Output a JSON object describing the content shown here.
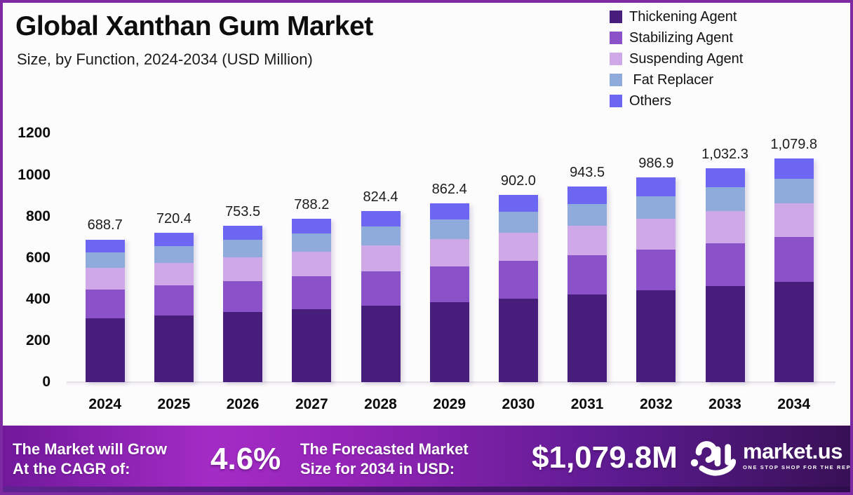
{
  "page": {
    "background": "#fdfcfd",
    "border_color": "#7e2ba3"
  },
  "header": {
    "title": "Global Xanthan Gum Market",
    "subtitle": "Size, by Function, 2024-2034 (USD Million)"
  },
  "chart_data": {
    "type": "bar",
    "stacked": true,
    "title": "Global Xanthan Gum Market",
    "subtitle": "Size, by Function, 2024-2034 (USD Million)",
    "unit": "USD Million",
    "categories": [
      "2024",
      "2025",
      "2026",
      "2027",
      "2028",
      "2029",
      "2030",
      "2031",
      "2032",
      "2033",
      "2034"
    ],
    "totals": [
      688.7,
      720.4,
      753.5,
      788.2,
      824.4,
      862.4,
      902.0,
      943.5,
      986.9,
      1032.3,
      1079.8
    ],
    "total_labels": [
      "688.7",
      "720.4",
      "753.5",
      "788.2",
      "824.4",
      "862.4",
      "902.0",
      "943.5",
      "986.9",
      "1,032.3",
      "1,079.8"
    ],
    "series": [
      {
        "name": "Thickening Agent",
        "color": "#471e7b",
        "values": [
          308.5,
          322.7,
          337.6,
          353.1,
          369.3,
          386.4,
          404.1,
          422.7,
          442.1,
          462.5,
          483.8
        ]
      },
      {
        "name": "Stabilizing Agent",
        "color": "#8a51c9",
        "values": [
          137.7,
          144.1,
          150.7,
          157.6,
          164.9,
          172.5,
          180.4,
          188.7,
          197.4,
          206.5,
          216.0
        ]
      },
      {
        "name": "Suspending Agent",
        "color": "#cfa8e8",
        "values": [
          104.7,
          109.5,
          114.5,
          119.8,
          125.3,
          131.1,
          137.1,
          143.4,
          150.0,
          156.9,
          164.1
        ]
      },
      {
        "name": " Fat Replacer",
        "color": "#8fabdb",
        "values": [
          75.8,
          79.2,
          82.9,
          86.7,
          90.7,
          94.9,
          99.2,
          103.8,
          108.6,
          113.6,
          118.8
        ]
      },
      {
        "name": "Others",
        "color": "#6c66f2",
        "values": [
          62.0,
          64.9,
          67.8,
          71.0,
          74.2,
          77.5,
          81.2,
          84.9,
          88.8,
          92.8,
          97.1
        ]
      }
    ],
    "series_values_note": "segment values estimated from bar proportions; totals are labeled on chart",
    "y_ticks": [
      0,
      200,
      400,
      600,
      800,
      1000,
      1200
    ],
    "ylim": [
      0,
      1200
    ],
    "grid": false,
    "legend_position": "top-right",
    "axis_line_color": "#e4e1e6"
  },
  "footer": {
    "cagr_line1": "The Market will Grow",
    "cagr_line2": "At the CAGR of:",
    "cagr_value": "4.6%",
    "forecast_line1": "The Forecasted Market",
    "forecast_line2": "Size for 2034 in USD:",
    "forecast_value": "$1,079.8M",
    "brand_name": "market.us",
    "brand_tagline": "ONE STOP SHOP FOR THE REPORTS",
    "gradient": [
      "#70189a",
      "#a42cc6",
      "#9224b6",
      "#5d1b91",
      "#371055"
    ],
    "strip_left": "#5e2390",
    "strip_right": "#2e0d4c"
  }
}
